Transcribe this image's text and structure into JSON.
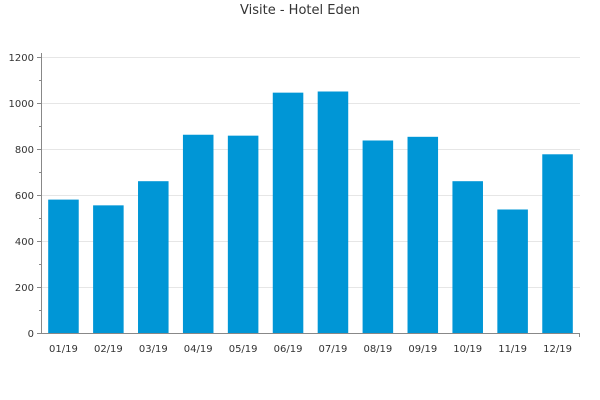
{
  "chart_data": {
    "type": "bar",
    "title": "Visite - Hotel Eden",
    "xlabel": "",
    "ylabel": "",
    "categories": [
      "01/19",
      "02/19",
      "03/19",
      "04/19",
      "05/19",
      "06/19",
      "07/19",
      "08/19",
      "09/19",
      "10/19",
      "11/19",
      "12/19"
    ],
    "values": [
      580,
      555,
      660,
      862,
      858,
      1045,
      1050,
      837,
      853,
      660,
      537,
      777
    ],
    "ylim": [
      0,
      1200
    ],
    "yticks": [
      0,
      200,
      400,
      600,
      800,
      1000,
      1200
    ],
    "grid": true,
    "legend": "none",
    "bar_color": "#0096d6",
    "grid_color": "#e6e6e6",
    "axis_color": "#888888"
  }
}
